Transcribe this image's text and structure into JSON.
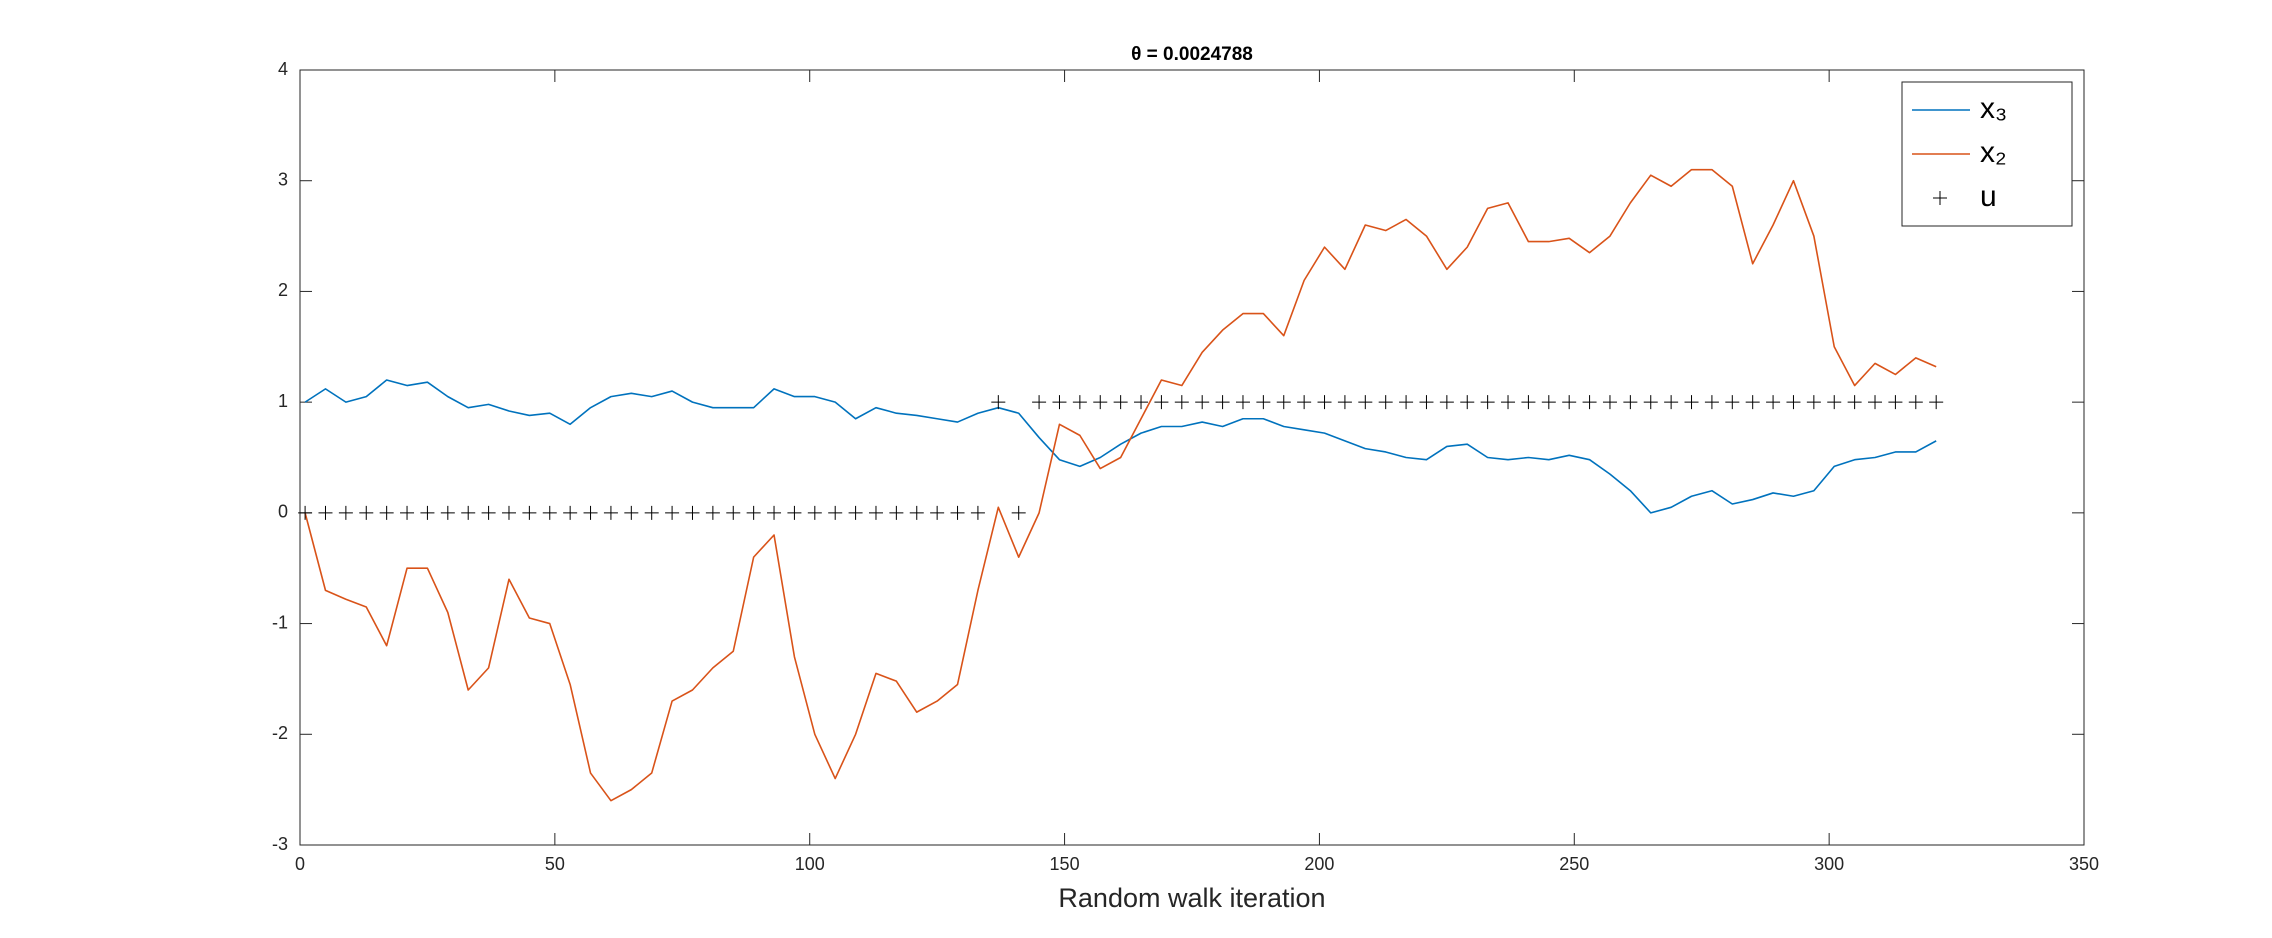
{
  "chart_data": {
    "type": "line",
    "title": "θ = 0.0024788",
    "x_label": "Random walk iteration",
    "x": [
      1,
      5,
      9,
      13,
      17,
      21,
      25,
      29,
      33,
      37,
      41,
      45,
      49,
      53,
      57,
      61,
      65,
      69,
      73,
      77,
      81,
      85,
      89,
      93,
      97,
      101,
      105,
      109,
      113,
      117,
      121,
      125,
      129,
      133,
      137,
      141,
      145,
      149,
      153,
      157,
      161,
      165,
      169,
      173,
      177,
      181,
      185,
      189,
      193,
      197,
      201,
      205,
      209,
      213,
      217,
      221,
      225,
      229,
      233,
      237,
      241,
      245,
      249,
      253,
      257,
      261,
      265,
      269,
      273,
      277,
      281,
      285,
      289,
      293,
      297,
      301,
      305,
      309,
      313,
      317,
      321
    ],
    "series": [
      {
        "name": "x₃",
        "color": "#0072BD",
        "marker": "none",
        "values": [
          1.0,
          1.12,
          1.0,
          1.05,
          1.2,
          1.15,
          1.18,
          1.05,
          0.95,
          0.98,
          0.92,
          0.88,
          0.9,
          0.8,
          0.95,
          1.05,
          1.08,
          1.05,
          1.1,
          1.0,
          0.95,
          0.95,
          0.95,
          1.12,
          1.05,
          1.05,
          1.0,
          0.85,
          0.95,
          0.9,
          0.88,
          0.85,
          0.82,
          0.9,
          0.95,
          0.9,
          0.68,
          0.48,
          0.42,
          0.5,
          0.62,
          0.72,
          0.78,
          0.78,
          0.82,
          0.78,
          0.85,
          0.85,
          0.78,
          0.75,
          0.72,
          0.65,
          0.58,
          0.55,
          0.5,
          0.48,
          0.6,
          0.62,
          0.5,
          0.48,
          0.5,
          0.48,
          0.52,
          0.48,
          0.35,
          0.2,
          0.0,
          0.05,
          0.15,
          0.2,
          0.08,
          0.12,
          0.18,
          0.15,
          0.2,
          0.42,
          0.48,
          0.5,
          0.55,
          0.55,
          0.65
        ]
      },
      {
        "name": "x₂",
        "color": "#D95319",
        "marker": "none",
        "values": [
          0.0,
          -0.7,
          -0.78,
          -0.85,
          -1.2,
          -0.5,
          -0.5,
          -0.9,
          -1.6,
          -1.4,
          -0.6,
          -0.95,
          -1.0,
          -1.55,
          -2.35,
          -2.6,
          -2.5,
          -2.35,
          -1.7,
          -1.6,
          -1.4,
          -1.25,
          -0.4,
          -0.2,
          -1.3,
          -2.0,
          -2.4,
          -2.0,
          -1.45,
          -1.52,
          -1.8,
          -1.7,
          -1.55,
          -0.7,
          0.05,
          -0.4,
          0.0,
          0.8,
          0.7,
          0.4,
          0.5,
          0.85,
          1.2,
          1.15,
          1.45,
          1.65,
          1.8,
          1.8,
          1.6,
          2.1,
          2.4,
          2.2,
          2.6,
          2.55,
          2.65,
          2.5,
          2.2,
          2.4,
          2.75,
          2.8,
          2.45,
          2.45,
          2.48,
          2.35,
          2.5,
          2.8,
          3.05,
          2.95,
          3.1,
          3.1,
          2.95,
          2.25,
          2.6,
          3.0,
          2.5,
          1.5,
          1.15,
          1.35,
          1.25,
          1.4,
          1.32
        ]
      },
      {
        "name": "u",
        "color": "#000000",
        "marker": "+",
        "values": [
          0,
          0,
          0,
          0,
          0,
          0,
          0,
          0,
          0,
          0,
          0,
          0,
          0,
          0,
          0,
          0,
          0,
          0,
          0,
          0,
          0,
          0,
          0,
          0,
          0,
          0,
          0,
          0,
          0,
          0,
          0,
          0,
          0,
          0,
          1,
          0,
          1,
          1,
          1,
          1,
          1,
          1,
          1,
          1,
          1,
          1,
          1,
          1,
          1,
          1,
          1,
          1,
          1,
          1,
          1,
          1,
          1,
          1,
          1,
          1,
          1,
          1,
          1,
          1,
          1,
          1,
          1,
          1,
          1,
          1,
          1,
          1,
          1,
          1,
          1,
          1,
          1,
          1,
          1,
          1,
          1
        ]
      }
    ],
    "xlim": [
      0,
      350
    ],
    "xticks": [
      0,
      50,
      100,
      150,
      200,
      250,
      300,
      350
    ],
    "ylim": [
      -3,
      4
    ],
    "yticks": [
      -3,
      -2,
      -1,
      0,
      1,
      2,
      3,
      4
    ],
    "grid": false,
    "legend": "northeast"
  }
}
